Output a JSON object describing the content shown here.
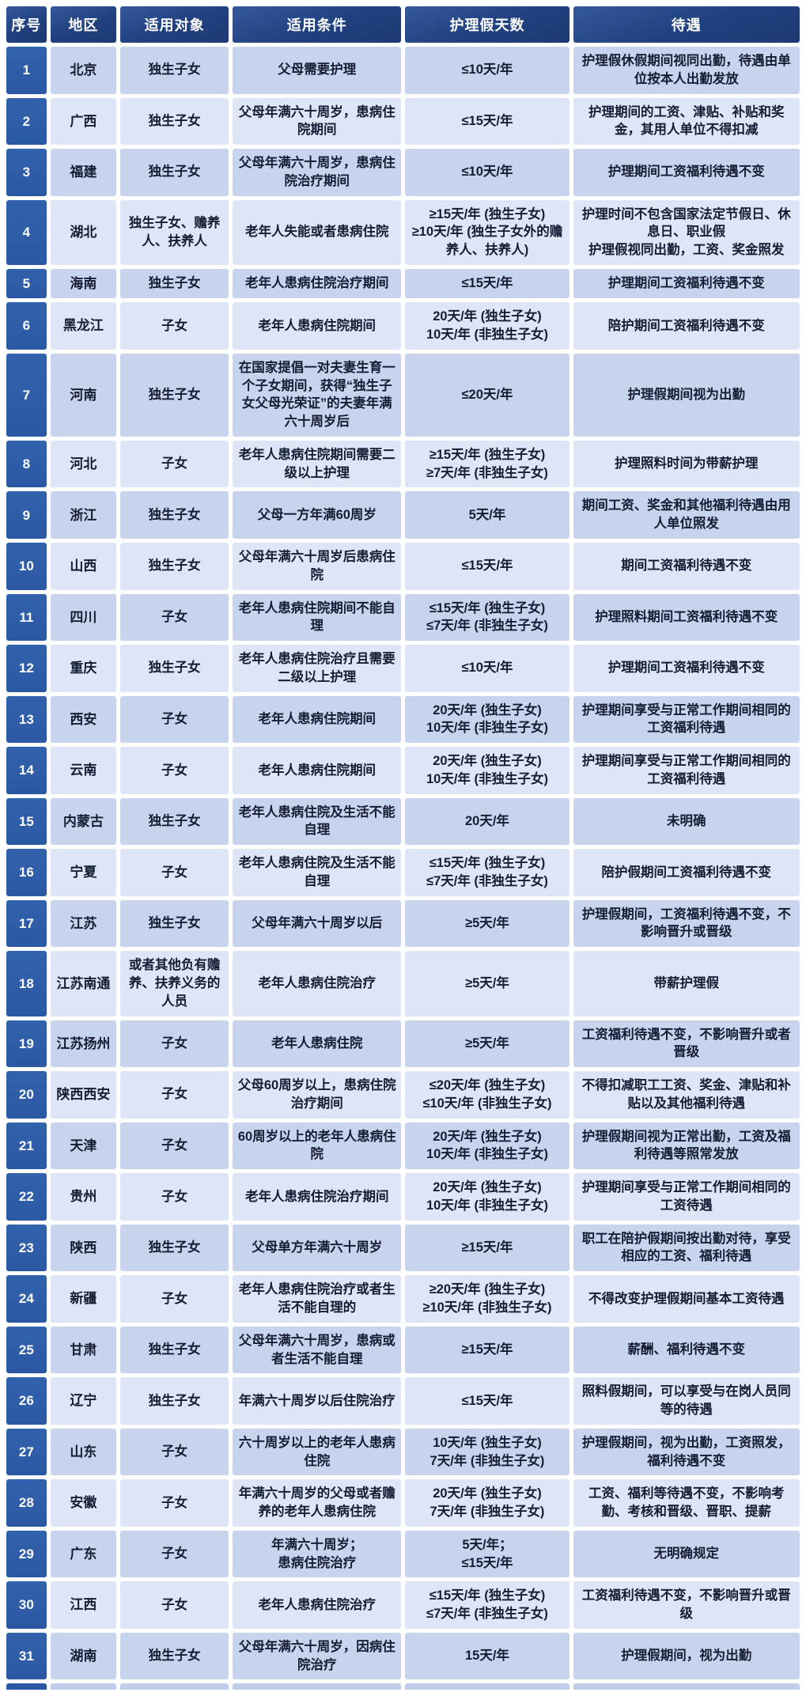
{
  "table": {
    "title_semantic": "各地区护理假政策一览表",
    "columns": [
      "序号",
      "地区",
      "适用对象",
      "适用条件",
      "护理假天数",
      "待遇"
    ],
    "rows": [
      {
        "no": "1",
        "region": "北京",
        "subject": "独生子女",
        "condition": "父母需要护理",
        "days": "≤10天/年",
        "treatment": "护理假休假期间视同出勤，待遇由单位按本人出勤发放"
      },
      {
        "no": "2",
        "region": "广西",
        "subject": "独生子女",
        "condition": "父母年满六十周岁，患病住院期间",
        "days": "≤15天/年",
        "treatment": "护理期间的工资、津贴、补贴和奖金，其用人单位不得扣减"
      },
      {
        "no": "3",
        "region": "福建",
        "subject": "独生子女",
        "condition": "父母年满六十周岁，患病住院治疗期间",
        "days": "≤10天/年",
        "treatment": "护理期间工资福利待遇不变"
      },
      {
        "no": "4",
        "region": "湖北",
        "subject": "独生子女、赡养人、扶养人",
        "condition": "老年人失能或者患病住院",
        "days": "≥15天/年 (独生子女)\n≥10天/年 (独生子女外的赡养人、扶养人)",
        "treatment": "护理时间不包含国家法定节假日、休息日、职业假\n护理假视同出勤，工资、奖金照发"
      },
      {
        "no": "5",
        "region": "海南",
        "subject": "独生子女",
        "condition": "老年人患病住院治疗期间",
        "days": "≤15天/年",
        "treatment": "护理期间工资福利待遇不变"
      },
      {
        "no": "6",
        "region": "黑龙江",
        "subject": "子女",
        "condition": "老年人患病住院期间",
        "days": "20天/年 (独生子女)\n10天/年 (非独生子女)",
        "treatment": "陪护期间工资福利待遇不变"
      },
      {
        "no": "7",
        "region": "河南",
        "subject": "独生子女",
        "condition": "在国家提倡一对夫妻生育一个子女期间，获得“独生子女父母光荣证”的夫妻年满六十周岁后",
        "days": "≤20天/年",
        "treatment": "护理假期间视为出勤"
      },
      {
        "no": "8",
        "region": "河北",
        "subject": "子女",
        "condition": "老年人患病住院期间需要二级以上护理",
        "days": "≥15天/年 (独生子女)\n≥7天/年 (非独生子女)",
        "treatment": "护理照料时间为带薪护理"
      },
      {
        "no": "9",
        "region": "浙江",
        "subject": "独生子女",
        "condition": "父母一方年满60周岁",
        "days": "5天/年",
        "treatment": "期间工资、奖金和其他福利待遇由用人单位照发"
      },
      {
        "no": "10",
        "region": "山西",
        "subject": "独生子女",
        "condition": "父母年满六十周岁后患病住院",
        "days": "≤15天/年",
        "treatment": "期间工资福利待遇不变"
      },
      {
        "no": "11",
        "region": "四川",
        "subject": "子女",
        "condition": "老年人患病住院期间不能自理",
        "days": "≤15天/年 (独生子女)\n≤7天/年 (非独生子女)",
        "treatment": "护理照料期间工资福利待遇不变"
      },
      {
        "no": "12",
        "region": "重庆",
        "subject": "独生子女",
        "condition": "老年人患病住院治疗且需要二级以上护理",
        "days": "≤10天/年",
        "treatment": "护理期间工资福利待遇不变"
      },
      {
        "no": "13",
        "region": "西安",
        "subject": "子女",
        "condition": "老年人患病住院期间",
        "days": "20天/年 (独生子女)\n10天/年 (非独生子女)",
        "treatment": "护理期间享受与正常工作期间相同的工资福利待遇"
      },
      {
        "no": "14",
        "region": "云南",
        "subject": "子女",
        "condition": "老年人患病住院期间",
        "days": "20天/年 (独生子女)\n10天/年 (非独生子女)",
        "treatment": "护理期间享受与正常工作期间相同的工资福利待遇"
      },
      {
        "no": "15",
        "region": "内蒙古",
        "subject": "独生子女",
        "condition": "老年人患病住院及生活不能自理",
        "days": "20天/年",
        "treatment": "未明确"
      },
      {
        "no": "16",
        "region": "宁夏",
        "subject": "子女",
        "condition": "老年人患病住院及生活不能自理",
        "days": "≤15天/年 (独生子女)\n≤7天/年 (非独生子女)",
        "treatment": "陪护假期间工资福利待遇不变"
      },
      {
        "no": "17",
        "region": "江苏",
        "subject": "独生子女",
        "condition": "父母年满六十周岁以后",
        "days": "≥5天/年",
        "treatment": "护理假期间，工资福利待遇不变，不影响晋升或晋级"
      },
      {
        "no": "18",
        "region": "江苏南通",
        "subject": "或者其他负有赡养、扶养义务的人员",
        "condition": "老年人患病住院治疗",
        "days": "≥5天/年",
        "treatment": "带薪护理假"
      },
      {
        "no": "19",
        "region": "江苏扬州",
        "subject": "子女",
        "condition": "老年人患病住院",
        "days": "≥5天/年",
        "treatment": "工资福利待遇不变，不影响晋升或者晋级"
      },
      {
        "no": "20",
        "region": "陕西西安",
        "subject": "子女",
        "condition": "父母60周岁以上，患病住院治疗期间",
        "days": "≤20天/年 (独生子女)\n≤10天/年 (非独生子女)",
        "treatment": "不得扣减职工工资、奖金、津贴和补贴以及其他福利待遇"
      },
      {
        "no": "21",
        "region": "天津",
        "subject": "子女",
        "condition": "60周岁以上的老年人患病住院",
        "days": "20天/年 (独生子女)\n10天/年 (非独生子女)",
        "treatment": "护理假期间视为正常出勤，工资及福利待遇等照常发放"
      },
      {
        "no": "22",
        "region": "贵州",
        "subject": "子女",
        "condition": "老年人患病住院治疗期间",
        "days": "20天/年 (独生子女)\n10天/年 (非独生子女)",
        "treatment": "护理期间享受与正常工作期间相同的工资待遇"
      },
      {
        "no": "23",
        "region": "陕西",
        "subject": "独生子女",
        "condition": "父母单方年满六十周岁",
        "days": "≥15天/年",
        "treatment": "职工在陪护假期间按出勤对待，享受相应的工资、福利待遇"
      },
      {
        "no": "24",
        "region": "新疆",
        "subject": "子女",
        "condition": "老年人患病住院治疗或者生活不能自理的",
        "days": "≥20天/年 (独生子女)\n≥10天/年 (非独生子女)",
        "treatment": "不得改变护理假期间基本工资待遇"
      },
      {
        "no": "25",
        "region": "甘肃",
        "subject": "独生子女",
        "condition": "父母年满六十周岁，患病或者生活不能自理",
        "days": "≥15天/年",
        "treatment": "薪酬、福利待遇不变"
      },
      {
        "no": "26",
        "region": "辽宁",
        "subject": "独生子女",
        "condition": "年满六十周岁以后住院治疗",
        "days": "≤15天/年",
        "treatment": "照料假期间，可以享受与在岗人员同等的待遇"
      },
      {
        "no": "27",
        "region": "山东",
        "subject": "子女",
        "condition": "六十周岁以上的老年人患病住院",
        "days": "10天/年 (独生子女)\n7天/年 (非独生子女)",
        "treatment": "护理假期间，视为出勤，工资照发，福利待遇不变"
      },
      {
        "no": "28",
        "region": "安徽",
        "subject": "子女",
        "condition": "年满六十周岁的父母或者赡养的老年人患病住院",
        "days": "20天/年 (独生子女)\n7天/年 (非独生子女)",
        "treatment": "工资、福利等待遇不变，不影响考勤、考核和晋级、晋职、提薪"
      },
      {
        "no": "29",
        "region": "广东",
        "subject": "子女",
        "condition": "年满六十周岁；\n患病住院治疗",
        "days": "5天/年；\n≤15天/年",
        "treatment": "无明确规定"
      },
      {
        "no": "30",
        "region": "江西",
        "subject": "子女",
        "condition": "老年人患病住院治疗",
        "days": "≤15天/年 (独生子女)\n≤7天/年 (非独生子女)",
        "treatment": "工资福利待遇不变，不影响晋升或晋级"
      },
      {
        "no": "31",
        "region": "湖南",
        "subject": "独生子女",
        "condition": "父母年满六十周岁，因病住院治疗",
        "days": "15天/年",
        "treatment": "护理假期间，视为出勤"
      }
    ]
  },
  "colors": {
    "header_bg": "#20407e",
    "index_column_bg": "#2e5fa9",
    "row_odd_bg": "#c8d4ee",
    "row_even_bg": "#dde5f6",
    "header_text": "#ffffff",
    "body_text": "#141d33",
    "gutter": "#ffffff"
  }
}
